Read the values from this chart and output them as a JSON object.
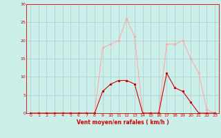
{
  "xlabel": "Vent moyen/en rafales ( km/h )",
  "x_values": [
    0,
    1,
    2,
    3,
    4,
    5,
    6,
    7,
    8,
    9,
    10,
    11,
    12,
    13,
    14,
    15,
    16,
    17,
    18,
    19,
    20,
    21,
    22,
    23
  ],
  "mean_wind": [
    0,
    0,
    0,
    0,
    0,
    0,
    0,
    0,
    0,
    6,
    8,
    9,
    9,
    8,
    0,
    0,
    0,
    11,
    7,
    6,
    3,
    0,
    0,
    0
  ],
  "gust_wind": [
    0,
    0,
    0,
    0,
    0,
    0,
    0,
    0,
    0,
    18,
    19,
    20,
    26,
    21,
    0,
    0,
    0,
    19,
    19,
    20,
    15,
    11,
    1,
    0
  ],
  "mean_color": "#cc0000",
  "gust_color": "#ffaaaa",
  "bg_color": "#cceee8",
  "grid_color": "#aacccc",
  "ylim": [
    0,
    30
  ],
  "xlim_min": -0.5,
  "xlim_max": 23.5,
  "yticks": [
    0,
    5,
    10,
    15,
    20,
    25,
    30
  ],
  "xticks": [
    0,
    1,
    2,
    3,
    4,
    5,
    6,
    7,
    8,
    9,
    10,
    11,
    12,
    13,
    14,
    15,
    16,
    17,
    18,
    19,
    20,
    21,
    22,
    23
  ]
}
